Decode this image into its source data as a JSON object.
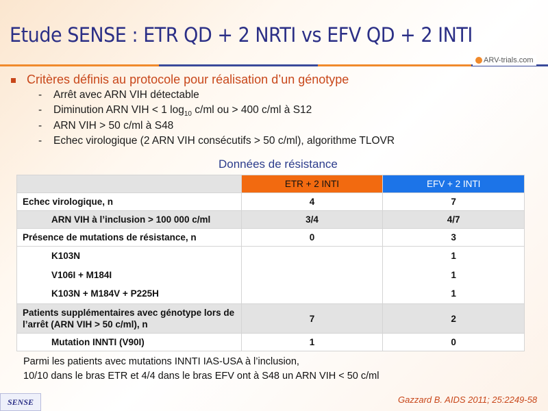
{
  "title": "Etude SENSE : ETR QD + 2 NRTI vs EFV QD + 2 INTI",
  "logo": "ARV-trials.com",
  "bullet": "Critères définis au protocole pour réalisation d’un génotype",
  "criteria": [
    "Arrêt avec ARN VIH détectable",
    {
      "pre": "Diminution ARN VIH < 1 log",
      "sub": "10",
      "post": " c/ml ou > 400 c/ml à S12"
    },
    "ARN VIH > 50 c/ml à S48",
    "Echec virologique (2 ARN VIH consécutifs > 50 c/ml), algorithme TLOVR"
  ],
  "subtitle": "Données de résistance",
  "table": {
    "headers": [
      "",
      "ETR + 2 INTI",
      "EFV + 2 INTI"
    ],
    "rows": [
      [
        "Echec virologique, n",
        "4",
        "7"
      ],
      [
        "ARN VIH à l’inclusion > 100 000 c/ml",
        "3/4",
        "4/7"
      ],
      [
        "Présence de mutations de résistance, n",
        "0",
        "3"
      ],
      [
        "K103N",
        "",
        "1"
      ],
      [
        "V106I + M184I",
        "",
        "1"
      ],
      [
        "K103N + M184V + P225H",
        "",
        "1"
      ],
      [
        "Patients supplémentaires avec génotype lors de l’arrêt (ARN VIH > 50 c/ml), n",
        "7",
        "2"
      ],
      [
        "Mutation INNTI (V90I)",
        "1",
        "0"
      ]
    ]
  },
  "note": [
    "Parmi les patients avec mutations INNTI IAS-USA  à l’inclusion,",
    "10/10 dans le bras ETR et 4/4 dans le bras EFV ont à S48 un ARN VIH < 50 c/ml"
  ],
  "footer_badge": "SENSE",
  "reference": "Gazzard B. AIDS 2011; 25:2249-58",
  "colors": {
    "title": "#2b2f86",
    "accent": "#c8471a",
    "etr_header": "#f26a10",
    "efv_header": "#1c74e8"
  }
}
